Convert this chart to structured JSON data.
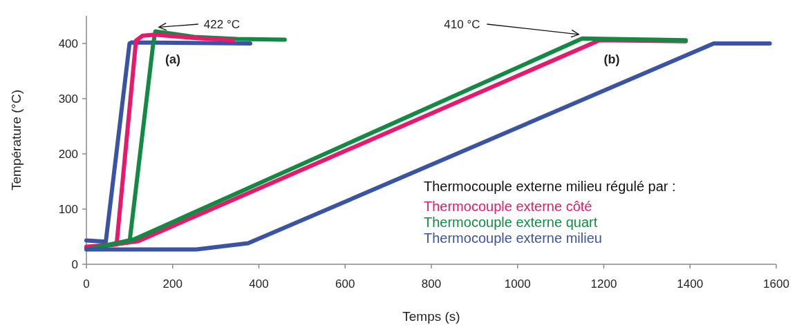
{
  "chart_data": {
    "type": "line",
    "xlabel": "Temps (s)",
    "ylabel": "Température (°C)",
    "legend_title": "Thermocouple externe milieu régulé par :",
    "legend": "bottom right",
    "grid": false,
    "marker": "none",
    "line_style": "solid",
    "xlim": [
      0,
      1600
    ],
    "xticks": [
      0,
      200,
      400,
      600,
      800,
      1000,
      1200,
      1400,
      1600
    ],
    "ylim": [
      0,
      450
    ],
    "yticks": [
      0,
      100,
      200,
      300,
      400
    ],
    "series": [
      {
        "color": "#3a53a4",
        "x": [
          0,
          45,
          100,
          105,
          380
        ],
        "values": [
          43,
          41,
          400,
          402,
          400
        ]
      },
      {
        "color": "#138a43",
        "x": [
          0,
          100,
          155,
          160,
          250,
          350,
          460
        ],
        "values": [
          28,
          40,
          400,
          422,
          412,
          408,
          407
        ]
      },
      {
        "color": "#e8186c",
        "x": [
          0,
          70,
          115,
          130,
          160,
          250,
          340
        ],
        "values": [
          32,
          36,
          405,
          414,
          416,
          410,
          406
        ]
      },
      {
        "name": "Thermocouple externe côté",
        "color": "#e8186c",
        "x": [
          0,
          120,
          1190,
          1390
        ],
        "values": [
          30,
          42,
          406,
          404
        ]
      },
      {
        "name": "Thermocouple externe quart",
        "color": "#138a43",
        "x": [
          0,
          110,
          1150,
          1390
        ],
        "values": [
          27,
          45,
          409,
          406
        ]
      },
      {
        "name": "Thermocouple externe milieu",
        "color": "#3a53a4",
        "x": [
          0,
          255,
          375,
          1455,
          1585
        ],
        "values": [
          27,
          27,
          38,
          400,
          400
        ]
      }
    ],
    "annotations": [
      {
        "text": "422 °C",
        "x": 160,
        "y": 422
      },
      {
        "text": "410 °C",
        "x": 1150,
        "y": 409
      },
      "(a)",
      "(b)"
    ]
  }
}
